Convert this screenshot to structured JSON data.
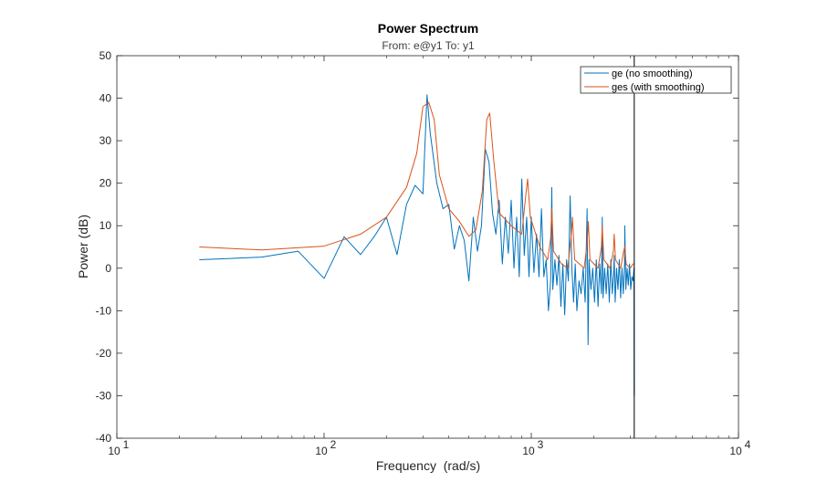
{
  "chart_data": {
    "type": "line",
    "title": "Power Spectrum",
    "subtitle": "From: e@y1  To: y1",
    "xlabel": "Frequency  (rad/s)",
    "ylabel": "Power (dB)",
    "xscale": "log",
    "xlim": [
      10,
      10000
    ],
    "ylim": [
      -40,
      50
    ],
    "xticks": [
      10,
      100,
      1000,
      10000
    ],
    "xtick_labels": [
      {
        "base": "10",
        "exp": "1"
      },
      {
        "base": "10",
        "exp": "2"
      },
      {
        "base": "10",
        "exp": "3"
      },
      {
        "base": "10",
        "exp": "4"
      }
    ],
    "yticks": [
      -40,
      -30,
      -20,
      -10,
      0,
      10,
      20,
      30,
      40,
      50
    ],
    "grid": false,
    "legend_position": "top-right",
    "vertical_line_x": 3140,
    "series": [
      {
        "name": "ge (no smoothing)",
        "color": "#0072BD",
        "x": [
          25,
          50,
          75,
          100,
          125,
          150,
          175,
          200,
          225,
          250,
          275,
          300,
          314,
          325,
          350,
          375,
          400,
          425,
          450,
          475,
          500,
          525,
          550,
          575,
          600,
          625,
          650,
          675,
          700,
          725,
          750,
          775,
          800,
          825,
          850,
          875,
          900,
          925,
          950,
          975,
          1000,
          1030,
          1060,
          1090,
          1120,
          1150,
          1180,
          1210,
          1240,
          1256,
          1270,
          1300,
          1330,
          1360,
          1390,
          1420,
          1450,
          1480,
          1510,
          1540,
          1570,
          1600,
          1630,
          1660,
          1700,
          1740,
          1780,
          1820,
          1860,
          1880,
          1900,
          1940,
          1980,
          2020,
          2060,
          2100,
          2140,
          2180,
          2200,
          2220,
          2260,
          2300,
          2340,
          2380,
          2420,
          2460,
          2500,
          2513,
          2540,
          2580,
          2620,
          2660,
          2700,
          2740,
          2780,
          2820,
          2827,
          2860,
          2900,
          2940,
          2980,
          3020,
          3060,
          3100,
          3130,
          3140,
          3141
        ],
        "y": [
          2,
          2.6,
          4,
          -2.4,
          7.4,
          3.2,
          7.5,
          12,
          3.2,
          15,
          19.5,
          17.5,
          40.8,
          32,
          20,
          14,
          15,
          4.5,
          10,
          6.5,
          -3,
          12,
          4,
          10,
          28,
          25,
          13,
          8,
          16,
          1,
          12,
          3.5,
          16,
          0,
          12,
          -2,
          21,
          3,
          12,
          -2,
          12,
          -1,
          8,
          -2,
          14,
          -2,
          2,
          -10,
          -3,
          19,
          -5,
          2,
          -4,
          3,
          -9,
          1,
          -11,
          2,
          -3,
          17,
          0,
          -8,
          1,
          -10,
          -3,
          -6,
          0,
          -8,
          14,
          -18,
          2,
          -5,
          0,
          -8,
          2,
          -9,
          1,
          -6,
          12,
          -7,
          0,
          -6,
          1,
          -8,
          2,
          -6,
          -1,
          3,
          -8,
          0,
          -5,
          2,
          -7,
          0,
          -6,
          1,
          10,
          -5,
          0,
          -4,
          1,
          -5,
          -2,
          -3,
          0,
          -30,
          -28
        ]
      },
      {
        "name": "ges (with smoothing)",
        "color": "#D95319",
        "x": [
          25,
          50,
          100,
          150,
          200,
          250,
          280,
          300,
          320,
          340,
          360,
          400,
          450,
          500,
          540,
          580,
          610,
          630,
          660,
          700,
          800,
          900,
          940,
          960,
          990,
          1100,
          1200,
          1240,
          1256,
          1280,
          1400,
          1500,
          1560,
          1580,
          1620,
          1800,
          1860,
          1885,
          1920,
          2100,
          2180,
          2200,
          2240,
          2400,
          2490,
          2513,
          2550,
          2700,
          2790,
          2827,
          2870,
          3000,
          3100,
          3140
        ],
        "y": [
          5,
          4.3,
          5.2,
          8,
          12,
          19,
          27,
          38,
          39,
          35,
          22,
          14,
          11,
          7.5,
          9,
          18,
          35,
          36.5,
          25,
          13,
          10,
          8,
          17,
          21,
          12,
          5,
          2,
          7,
          14,
          4,
          1,
          0,
          8,
          12,
          2,
          0,
          6,
          11,
          2,
          0,
          5,
          10,
          2,
          0,
          4,
          8,
          2,
          0,
          4,
          5,
          1,
          0,
          1,
          1
        ]
      }
    ]
  }
}
